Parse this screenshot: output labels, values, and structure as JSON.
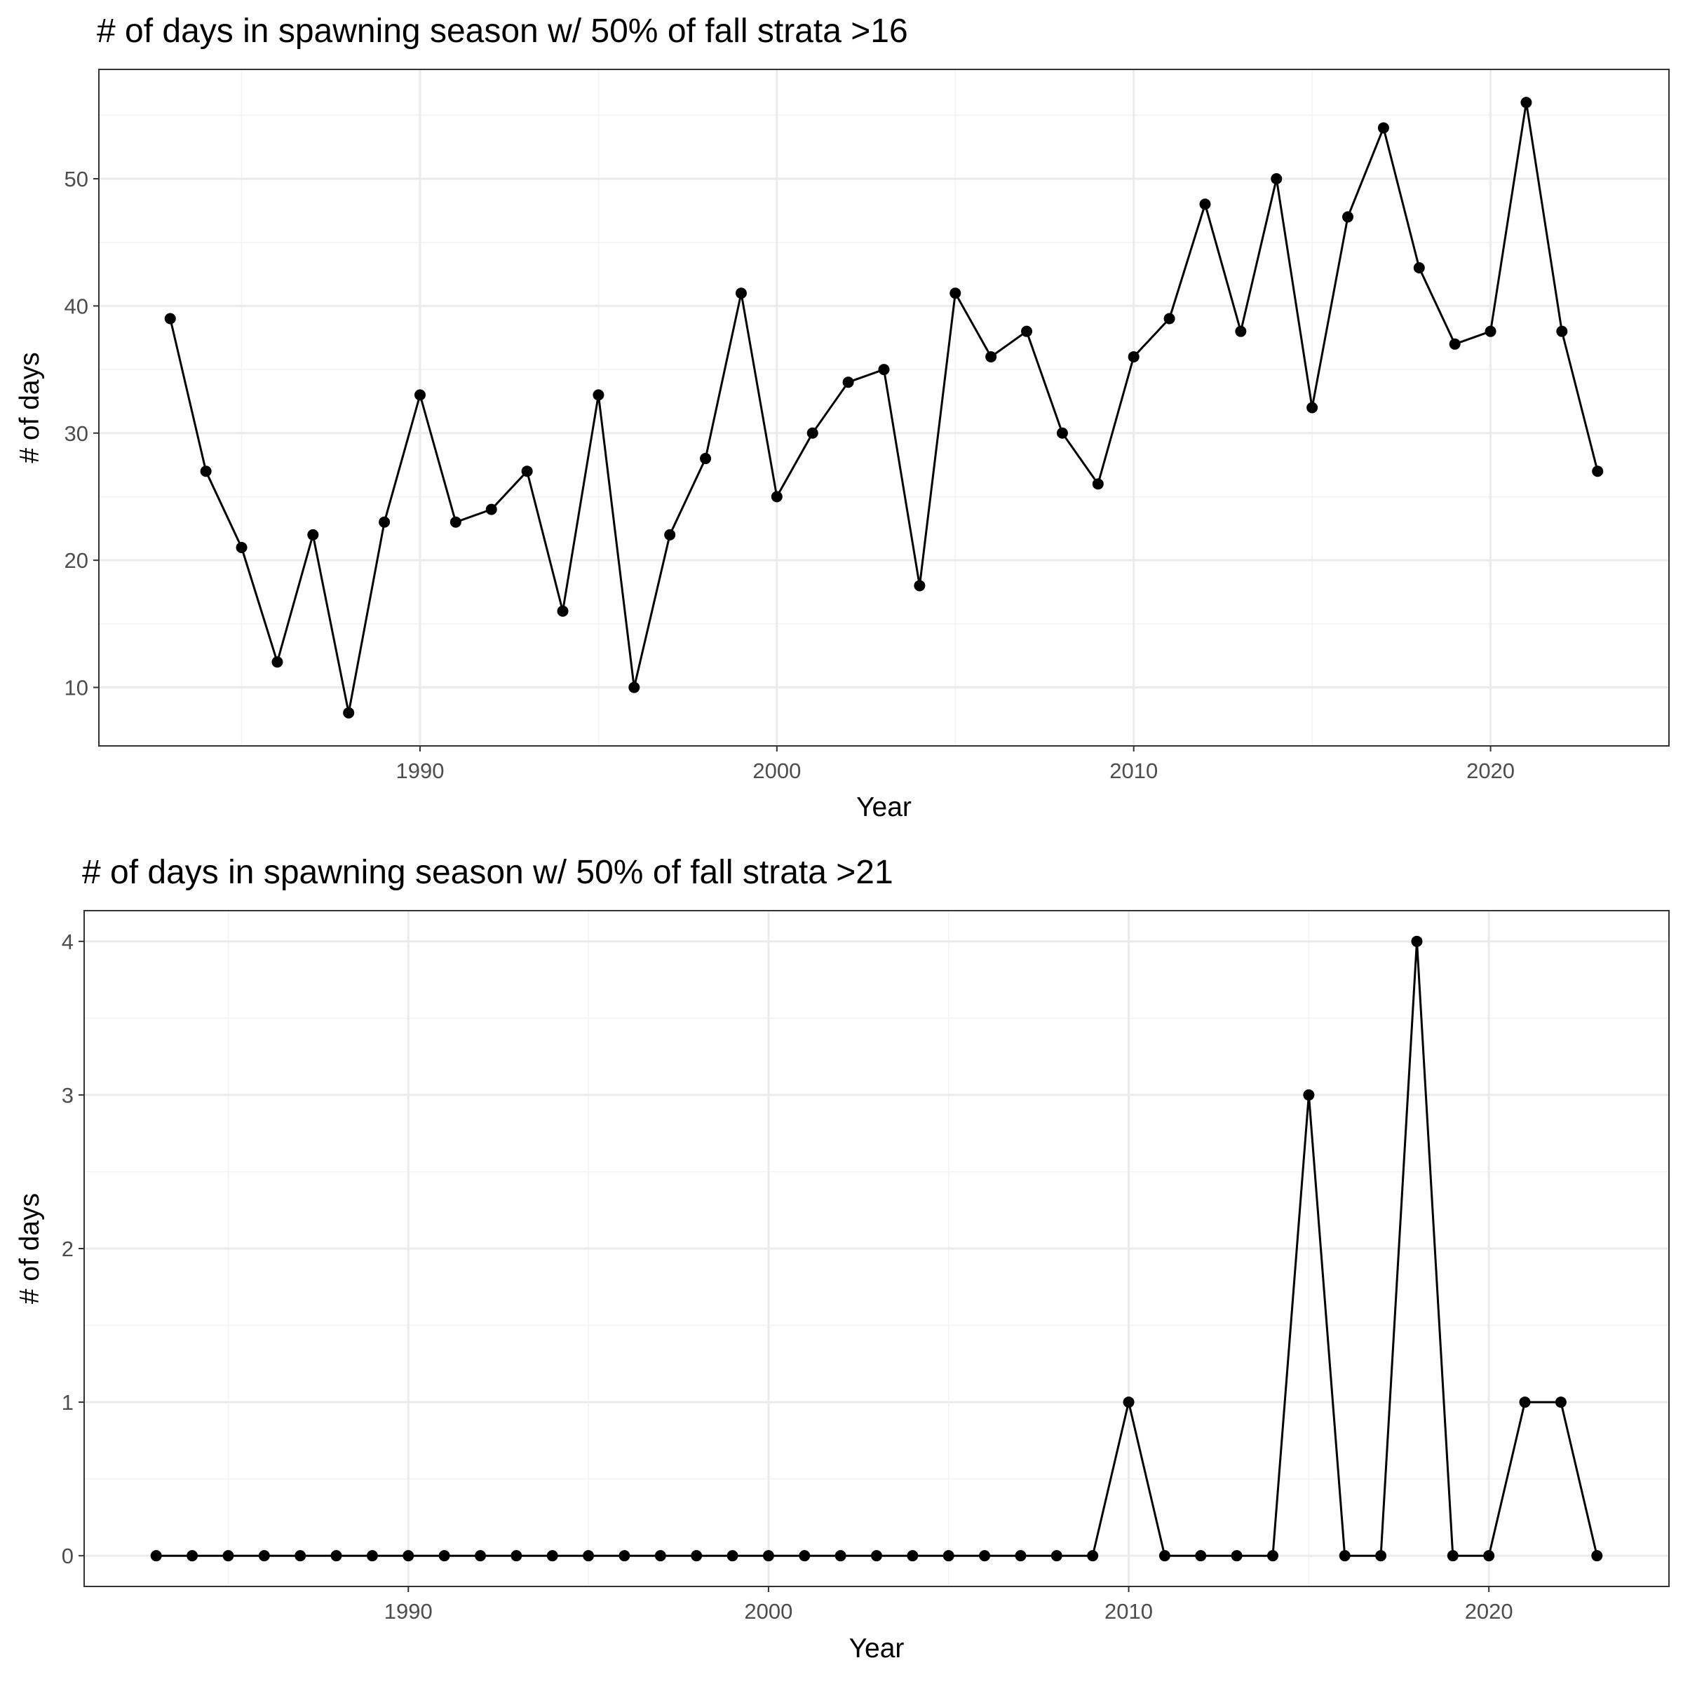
{
  "chart_data": [
    {
      "type": "line",
      "title": "# of days in spawning season w/ 50% of fall strata >16",
      "xlabel": "Year",
      "ylabel": "# of days",
      "xlim": [
        1981.0,
        2025.0
      ],
      "ylim": [
        5.4,
        58.6
      ],
      "x_ticks": [
        1990,
        2000,
        2010,
        2020
      ],
      "x_minor_ticks": [
        1985,
        1995,
        2005,
        2015,
        2025
      ],
      "y_ticks": [
        10,
        20,
        30,
        40,
        50
      ],
      "y_minor_ticks": [
        15,
        25,
        35,
        45,
        55
      ],
      "grid": true,
      "series": [
        {
          "x": [
            1983,
            1984,
            1985,
            1986,
            1987,
            1988,
            1989,
            1990,
            1991,
            1992,
            1993,
            1994,
            1995,
            1996,
            1997,
            1998,
            1999,
            2000,
            2001,
            2002,
            2003,
            2004,
            2005,
            2006,
            2007,
            2008,
            2009,
            2010,
            2011,
            2012,
            2013,
            2014,
            2015,
            2016,
            2017,
            2018,
            2019,
            2020,
            2021,
            2022,
            2023
          ],
          "y": [
            39,
            27,
            21,
            12,
            22,
            8,
            23,
            33,
            23,
            24,
            27,
            16,
            33,
            10,
            22,
            28,
            41,
            25,
            30,
            34,
            35,
            18,
            41,
            36,
            38,
            30,
            26,
            36,
            39,
            48,
            38,
            50,
            32,
            47,
            54,
            43,
            37,
            38,
            56,
            38,
            27
          ]
        }
      ]
    },
    {
      "type": "line",
      "title": "# of days in spawning season w/ 50% of fall strata >21",
      "xlabel": "Year",
      "ylabel": "# of days",
      "xlim": [
        1981.0,
        2025.0
      ],
      "ylim": [
        -0.2,
        4.2
      ],
      "x_ticks": [
        1990,
        2000,
        2010,
        2020
      ],
      "x_minor_ticks": [
        1985,
        1995,
        2005,
        2015,
        2025
      ],
      "y_ticks": [
        0,
        1,
        2,
        3,
        4
      ],
      "y_minor_ticks": [
        0.5,
        1.5,
        2.5,
        3.5
      ],
      "grid": true,
      "series": [
        {
          "x": [
            1983,
            1984,
            1985,
            1986,
            1987,
            1988,
            1989,
            1990,
            1991,
            1992,
            1993,
            1994,
            1995,
            1996,
            1997,
            1998,
            1999,
            2000,
            2001,
            2002,
            2003,
            2004,
            2005,
            2006,
            2007,
            2008,
            2009,
            2010,
            2011,
            2012,
            2013,
            2014,
            2015,
            2016,
            2017,
            2018,
            2019,
            2020,
            2021,
            2022,
            2023
          ],
          "y": [
            0,
            0,
            0,
            0,
            0,
            0,
            0,
            0,
            0,
            0,
            0,
            0,
            0,
            0,
            0,
            0,
            0,
            0,
            0,
            0,
            0,
            0,
            0,
            0,
            0,
            0,
            0,
            1,
            0,
            0,
            0,
            0,
            3,
            0,
            0,
            4,
            0,
            0,
            1,
            1,
            0
          ]
        }
      ]
    }
  ]
}
